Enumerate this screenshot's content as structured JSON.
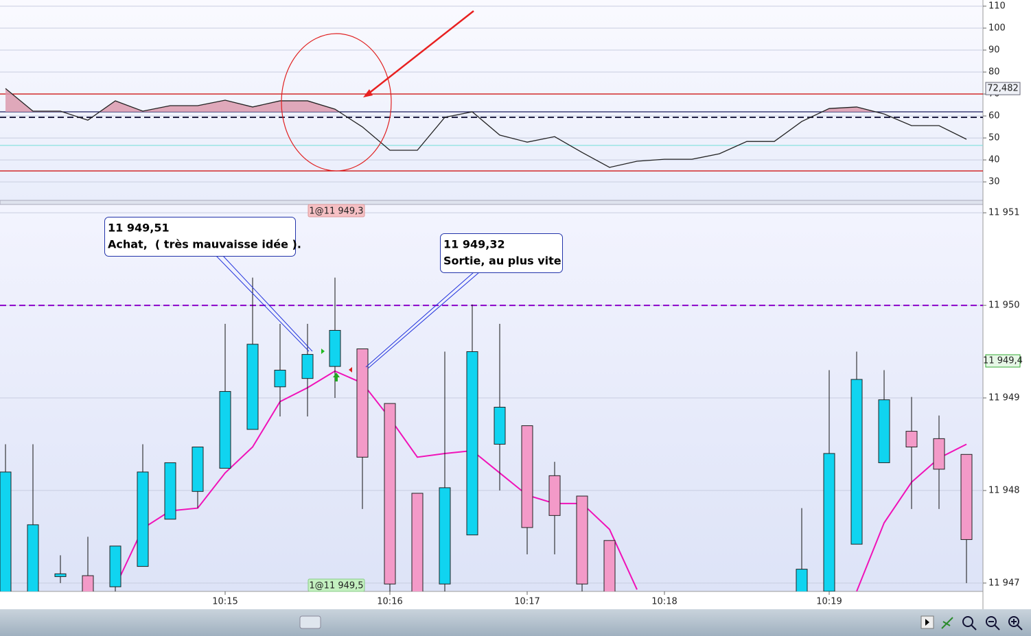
{
  "chart_data": [
    {
      "type": "line",
      "values": [
        72.5,
        62.2,
        62.2,
        58.1,
        66.9,
        62.2,
        64.7,
        64.7,
        67.2,
        64.1,
        66.9,
        66.9,
        63.1,
        55,
        44.4,
        44.4,
        59.4,
        61.9,
        51.3,
        48.1,
        50.6,
        43.4,
        36.6,
        39.4,
        40.3,
        40.3,
        42.8,
        48.4,
        48.4,
        57.5,
        63.4,
        64.1,
        60.9,
        55.6,
        55.6,
        49.4
      ],
      "color": "#222222",
      "ylim": [
        21.6,
        112.8
      ],
      "yticks": [
        30,
        40,
        50,
        60,
        70,
        80,
        90,
        100,
        110
      ],
      "grid": true,
      "levels": [
        {
          "value": 70,
          "color": "#cc0000"
        },
        {
          "value": 35,
          "color": "#cc0000"
        },
        {
          "value": 61.9,
          "color": "#1a1a5e",
          "fill": "#dc9aae"
        },
        {
          "value": 59.4,
          "color": "#222244",
          "dash": true
        },
        {
          "value": 46.6,
          "color": "#7fe0dc"
        }
      ],
      "last_value": {
        "value": 72.482,
        "label": "72,482"
      }
    },
    {
      "type": "candlestick",
      "categories": [
        null,
        null,
        null,
        null,
        null,
        null,
        null,
        null,
        "10:15",
        null,
        null,
        null,
        null,
        null,
        "10:16",
        null,
        null,
        null,
        null,
        "10:17",
        null,
        null,
        null,
        null,
        "10:18",
        null,
        null,
        null,
        null,
        null,
        "10:19",
        null,
        null,
        null,
        null,
        null
      ],
      "open": [
        11946.85,
        11946.85,
        11947.07,
        11947.08,
        11946.96,
        11947.18,
        11947.69,
        11947.99,
        11948.24,
        11948.66,
        11949.12,
        11949.21,
        11949.34,
        11949.53,
        11948.94,
        11947.97,
        11946.99,
        11947.52,
        11948.5,
        11948.7,
        11948.16,
        11947.94,
        11947.46,
        null,
        null,
        null,
        null,
        null,
        null,
        11946.85,
        11946.91,
        11947.42,
        11948.3,
        11948.64,
        11948.56,
        11948.39
      ],
      "high": [
        11948.5,
        11948.5,
        11947.3,
        11947.5,
        11947.4,
        11948.5,
        11948.3,
        11948.47,
        11949.8,
        11950.3,
        11949.8,
        11949.8,
        11950.3,
        11949.53,
        11948.94,
        11947.97,
        11949.5,
        11950.01,
        11949.8,
        11948.7,
        11948.31,
        11947.94,
        11947.46,
        null,
        null,
        null,
        null,
        null,
        null,
        11947.81,
        11949.3,
        11949.5,
        11949.3,
        11949.01,
        11948.81,
        11948.39
      ],
      "low": [
        11946.85,
        11946.85,
        11947,
        11946.85,
        11946.91,
        11947.18,
        11947.69,
        11947.81,
        11948.24,
        11948.66,
        11948.8,
        11948.8,
        11949,
        11947.8,
        11946.85,
        11946.85,
        11946.91,
        11947.52,
        11948,
        11947.31,
        11947.31,
        11946.91,
        11946.85,
        null,
        null,
        null,
        null,
        null,
        null,
        11946.85,
        11946.91,
        11947.42,
        11948.3,
        11947.8,
        11947.8,
        11947
      ],
      "close": [
        11948.2,
        11947.63,
        11947.1,
        11946.85,
        11947.4,
        11948.2,
        11948.3,
        11948.47,
        11949.07,
        11949.58,
        11949.3,
        11949.47,
        11949.73,
        11948.36,
        11946.99,
        11946.85,
        11948.03,
        11949.5,
        11948.9,
        11947.6,
        11947.73,
        11946.99,
        11946.85,
        null,
        null,
        null,
        null,
        null,
        null,
        11947.15,
        11948.4,
        11949.2,
        11948.98,
        11948.47,
        11948.23,
        11947.47
      ],
      "up_color": "#10d4f0",
      "down_color": "#f39ac8",
      "series": [
        {
          "name": "moving-average",
          "color": "#f012b8",
          "values": [
            null,
            null,
            null,
            null,
            11946.96,
            11947.59,
            11947.78,
            11947.81,
            11948.19,
            11948.47,
            11948.96,
            11949.11,
            11949.29,
            11949.16,
            11948.78,
            11948.36,
            11948.4,
            11948.43,
            11948.19,
            11947.95,
            11947.86,
            11947.86,
            11947.58,
            11946.93,
            null,
            null,
            null,
            null,
            null,
            null,
            null,
            11946.91,
            11947.65,
            11948.09,
            11948.35,
            11948.5
          ]
        }
      ],
      "ylim": [
        11946.91,
        11951.09
      ],
      "yticks": [
        {
          "value": 11947,
          "label": "11 947"
        },
        {
          "value": 11948,
          "label": "11 948"
        },
        {
          "value": 11949,
          "label": "11 949"
        },
        {
          "value": 11950,
          "label": "11 950"
        },
        {
          "value": 11951,
          "label": "11 951"
        }
      ],
      "grid": true,
      "levels": [
        {
          "value": 11950,
          "color": "#8a00c8",
          "dash": true
        }
      ],
      "last_value": {
        "value": 11949.4,
        "label": "11 949,4"
      },
      "order_labels": [
        "1@11 949,3",
        "1@11 949,5"
      ],
      "annotations": [
        {
          "lines": [
            "11 949,51",
            "Achat,  ( très mauvaisse idée )."
          ]
        },
        {
          "lines": [
            "11 949,32",
            "Sortie, au plus vite"
          ]
        }
      ]
    }
  ]
}
